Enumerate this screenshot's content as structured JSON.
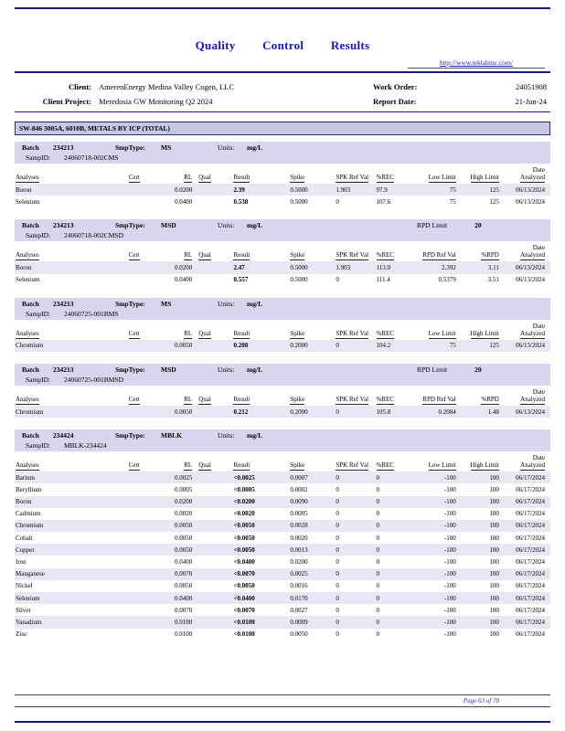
{
  "page": {
    "title": "Quality Control Results",
    "website": "http://www.teklabinc.com/",
    "footer": "Page 63 of 78"
  },
  "info": {
    "client_label": "Client:",
    "client_value": "AmerenEnergy Medina Valley Cogen, LLC",
    "project_label": "Client Project:",
    "project_value": "Meredosia GW Monitoring Q2 2024",
    "work_order_label": "Work Order:",
    "work_order_value": "24051908",
    "report_date_label": "Report Date:",
    "report_date_value": "21-Jun-24"
  },
  "section_title": "SW-846 3005A, 6010B, METALS BY ICP (TOTAL)",
  "labels": {
    "batch": "Batch",
    "smptype": "SmpType:",
    "units": "Units:",
    "rpd_limit": "RPD Limit",
    "sampid": "SampID:",
    "date_line1": "Date",
    "date_line2": "Analyzed"
  },
  "batches": [
    {
      "batch_no": "234213",
      "smptype": "MS",
      "units": "mg/L",
      "rpd_limit": null,
      "sampid": "24060718-002CMS",
      "columns": [
        "Analyses",
        "Cert",
        "RL",
        "Qual",
        "Result",
        "Spike",
        "SPK Ref Val",
        "%REC",
        "Low Limit",
        "High Limit"
      ],
      "rows": [
        [
          "Boron",
          "",
          "0.0200",
          "",
          "2.39",
          "0.5000",
          "1.903",
          "97.9",
          "75",
          "125",
          "06/13/2024"
        ],
        [
          "Selenium",
          "",
          "0.0400",
          "",
          "0.538",
          "0.5000",
          "0",
          "107.6",
          "75",
          "125",
          "06/13/2024"
        ]
      ]
    },
    {
      "batch_no": "234213",
      "smptype": "MSD",
      "units": "mg/L",
      "rpd_limit": "20",
      "sampid": "24060718-002CMSD",
      "columns": [
        "Analyses",
        "Cert",
        "RL",
        "Qual",
        "Result",
        "Spike",
        "SPK Ref Val",
        "%REC",
        "RPD Ref Val",
        "%RPD"
      ],
      "rows": [
        [
          "Boron",
          "",
          "0.0200",
          "",
          "2.47",
          "0.5000",
          "1.903",
          "113.0",
          "2.392",
          "3.11",
          "06/13/2024"
        ],
        [
          "Selenium",
          "",
          "0.0400",
          "",
          "0.557",
          "0.5000",
          "0",
          "111.4",
          "0.5379",
          "3.51",
          "06/13/2024"
        ]
      ]
    },
    {
      "batch_no": "234213",
      "smptype": "MS",
      "units": "mg/L",
      "rpd_limit": null,
      "sampid": "24060725-001BMS",
      "columns": [
        "Analyses",
        "Cert",
        "RL",
        "Qual",
        "Result",
        "Spike",
        "SPK Ref Val",
        "%REC",
        "Low Limit",
        "High Limit"
      ],
      "rows": [
        [
          "Chromium",
          "",
          "0.0050",
          "",
          "0.208",
          "0.2000",
          "0",
          "104.2",
          "75",
          "125",
          "06/13/2024"
        ]
      ]
    },
    {
      "batch_no": "234213",
      "smptype": "MSD",
      "units": "mg/L",
      "rpd_limit": "20",
      "sampid": "24060725-001BMSD",
      "columns": [
        "Analyses",
        "Cert",
        "RL",
        "Qual",
        "Result",
        "Spike",
        "SPK Ref Val",
        "%REC",
        "RPD Ref Val",
        "%RPD"
      ],
      "rows": [
        [
          "Chromium",
          "",
          "0.0050",
          "",
          "0.212",
          "0.2000",
          "0",
          "105.8",
          "0.2084",
          "1.48",
          "06/13/2024"
        ]
      ]
    },
    {
      "batch_no": "234424",
      "smptype": "MBLK",
      "units": "mg/L",
      "rpd_limit": null,
      "sampid": "MBLK-234424",
      "columns": [
        "Analyses",
        "Cert",
        "RL",
        "Qual",
        "Result",
        "Spike",
        "SPK Ref Val",
        "%REC",
        "Low Limit",
        "High Limit"
      ],
      "rows": [
        [
          "Barium",
          "",
          "0.0025",
          "",
          "<0.0025",
          "0.0007",
          "0",
          "0",
          "-100",
          "100",
          "06/17/2024"
        ],
        [
          "Beryllium",
          "",
          "0.0005",
          "",
          "<0.0005",
          "0.0002",
          "0",
          "0",
          "-100",
          "100",
          "06/17/2024"
        ],
        [
          "Boron",
          "",
          "0.0200",
          "",
          "<0.0200",
          "0.0090",
          "0",
          "0",
          "-100",
          "100",
          "06/17/2024"
        ],
        [
          "Cadmium",
          "",
          "0.0020",
          "",
          "<0.0020",
          "0.0005",
          "0",
          "0",
          "-100",
          "100",
          "06/17/2024"
        ],
        [
          "Chromium",
          "",
          "0.0050",
          "",
          "<0.0050",
          "0.0028",
          "0",
          "0",
          "-100",
          "100",
          "06/17/2024"
        ],
        [
          "Cobalt",
          "",
          "0.0050",
          "",
          "<0.0050",
          "0.0020",
          "0",
          "0",
          "-100",
          "100",
          "06/17/2024"
        ],
        [
          "Copper",
          "",
          "0.0050",
          "",
          "<0.0050",
          "0.0013",
          "0",
          "0",
          "-100",
          "100",
          "06/17/2024"
        ],
        [
          "Iron",
          "",
          "0.0400",
          "",
          "<0.0400",
          "0.0200",
          "0",
          "0",
          "-100",
          "100",
          "06/17/2024"
        ],
        [
          "Manganese",
          "",
          "0.0070",
          "",
          "<0.0070",
          "0.0025",
          "0",
          "0",
          "-100",
          "100",
          "06/17/2024"
        ],
        [
          "Nickel",
          "",
          "0.0050",
          "",
          "<0.0050",
          "0.0016",
          "0",
          "0",
          "-100",
          "100",
          "06/17/2024"
        ],
        [
          "Selenium",
          "",
          "0.0400",
          "",
          "<0.0400",
          "0.0170",
          "0",
          "0",
          "-100",
          "100",
          "06/17/2024"
        ],
        [
          "Silver",
          "",
          "0.0070",
          "",
          "<0.0070",
          "0.0027",
          "0",
          "0",
          "-100",
          "100",
          "06/17/2024"
        ],
        [
          "Vanadium",
          "",
          "0.0100",
          "",
          "<0.0100",
          "0.0009",
          "0",
          "0",
          "-100",
          "100",
          "06/17/2024"
        ],
        [
          "Zinc",
          "",
          "0.0100",
          "",
          "<0.0100",
          "0.0050",
          "0",
          "0",
          "-100",
          "100",
          "06/17/2024"
        ]
      ]
    }
  ]
}
